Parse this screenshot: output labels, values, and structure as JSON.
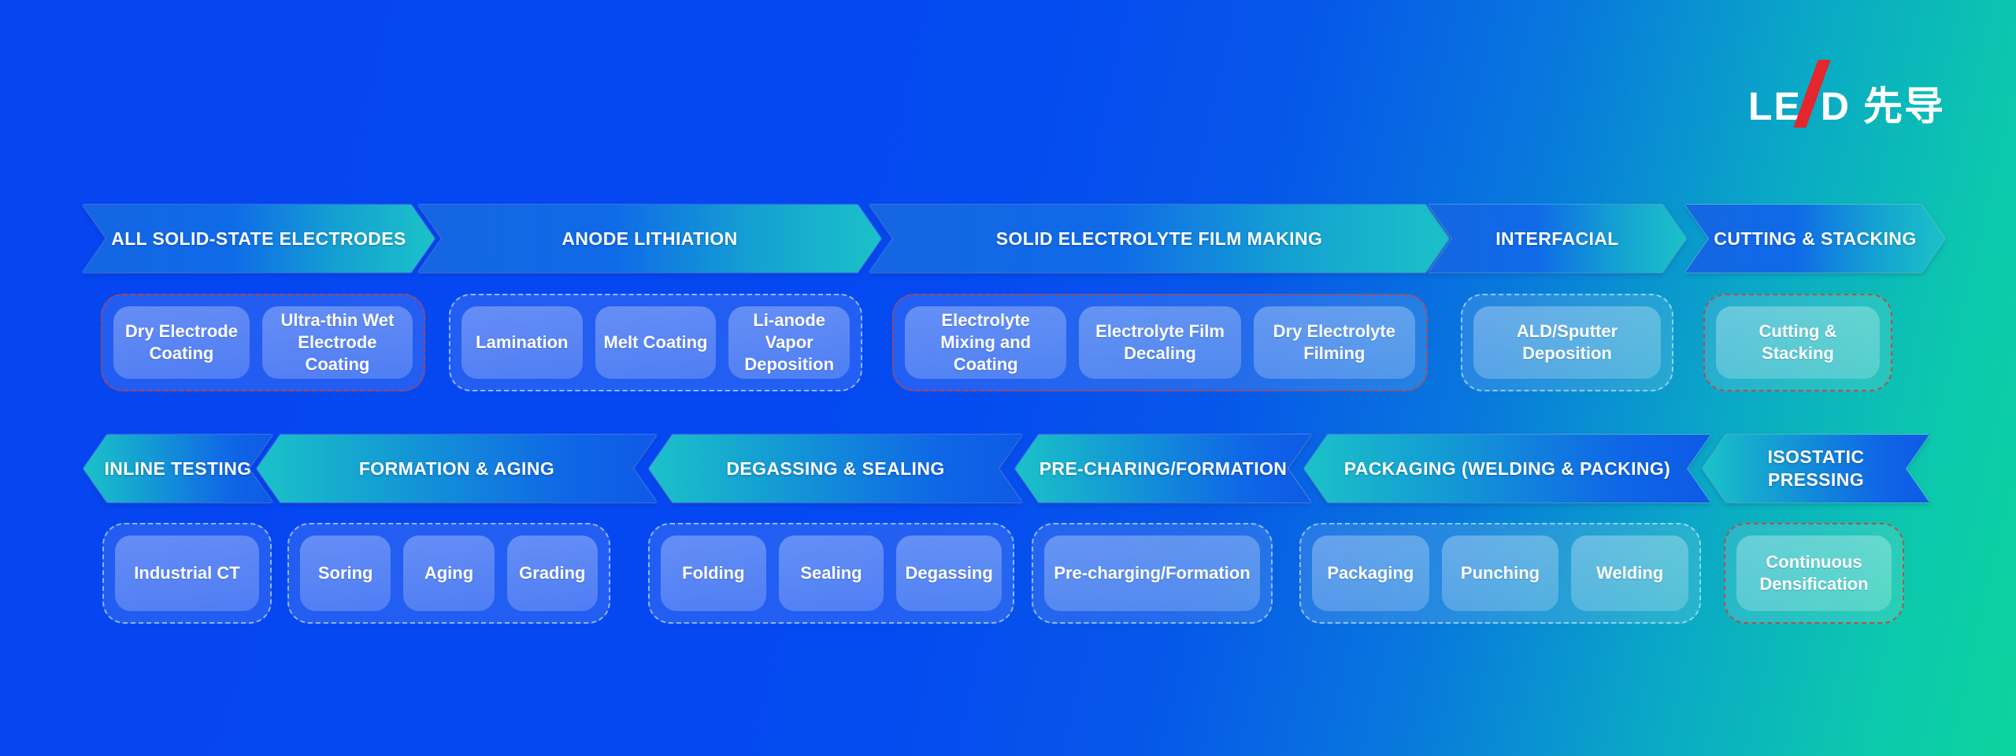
{
  "logo": {
    "latin_prefix": "LE",
    "latin_suffix": "D",
    "cjk": "先导",
    "slash_color": "#e4262d",
    "text_color": "#ffffff"
  },
  "colors": {
    "background_left": "#0545f0",
    "background_right": "#0cd49e",
    "arrow_blue": "#0f66e6",
    "arrow_teal": "#1bc2c8",
    "chip_fill": "#4c87ee",
    "group_border_light": "#c8ebff",
    "group_border_red": "#c84137",
    "text": "#ffffff"
  },
  "row1": {
    "arrows": [
      "ALL SOLID-STATE ELECTRODES",
      "ANODE LITHIATION",
      "SOLID ELECTROLYTE FILM MAKING",
      "INTERFACIAL",
      "CUTTING & STACKING"
    ],
    "groups": [
      {
        "border": "red",
        "chips": [
          "Dry Electrode Coating",
          "Ultra-thin Wet Electrode Coating"
        ]
      },
      {
        "border": "light",
        "chips": [
          "Lamination",
          "Melt Coating",
          "Li-anode Vapor Deposition"
        ]
      },
      {
        "border": "red",
        "chips": [
          "Electrolyte Mixing and Coating",
          "Electrolyte Film Decaling",
          "Dry Electrolyte Filming"
        ]
      },
      {
        "border": "light",
        "chips": [
          "ALD/Sputter Deposition"
        ]
      },
      {
        "border": "red",
        "chips": [
          "Cutting & Stacking"
        ]
      }
    ]
  },
  "row2": {
    "arrows": [
      "INLINE TESTING",
      "FORMATION & AGING",
      "DEGASSING & SEALING",
      "PRE-CHARING/FORMATION",
      "PACKAGING (WELDING & PACKING)",
      "ISOSTATIC PRESSING"
    ],
    "groups": [
      {
        "border": "light",
        "chips": [
          "Industrial CT"
        ]
      },
      {
        "border": "light",
        "chips": [
          "Soring",
          "Aging",
          "Grading"
        ]
      },
      {
        "border": "light",
        "chips": [
          "Folding",
          "Sealing",
          "Degassing"
        ]
      },
      {
        "border": "light",
        "chips": [
          "Pre-charging/Formation"
        ]
      },
      {
        "border": "light",
        "chips": [
          "Packaging",
          "Punching",
          "Welding"
        ]
      },
      {
        "border": "red",
        "chips": [
          "Continuous Densification"
        ]
      }
    ]
  }
}
